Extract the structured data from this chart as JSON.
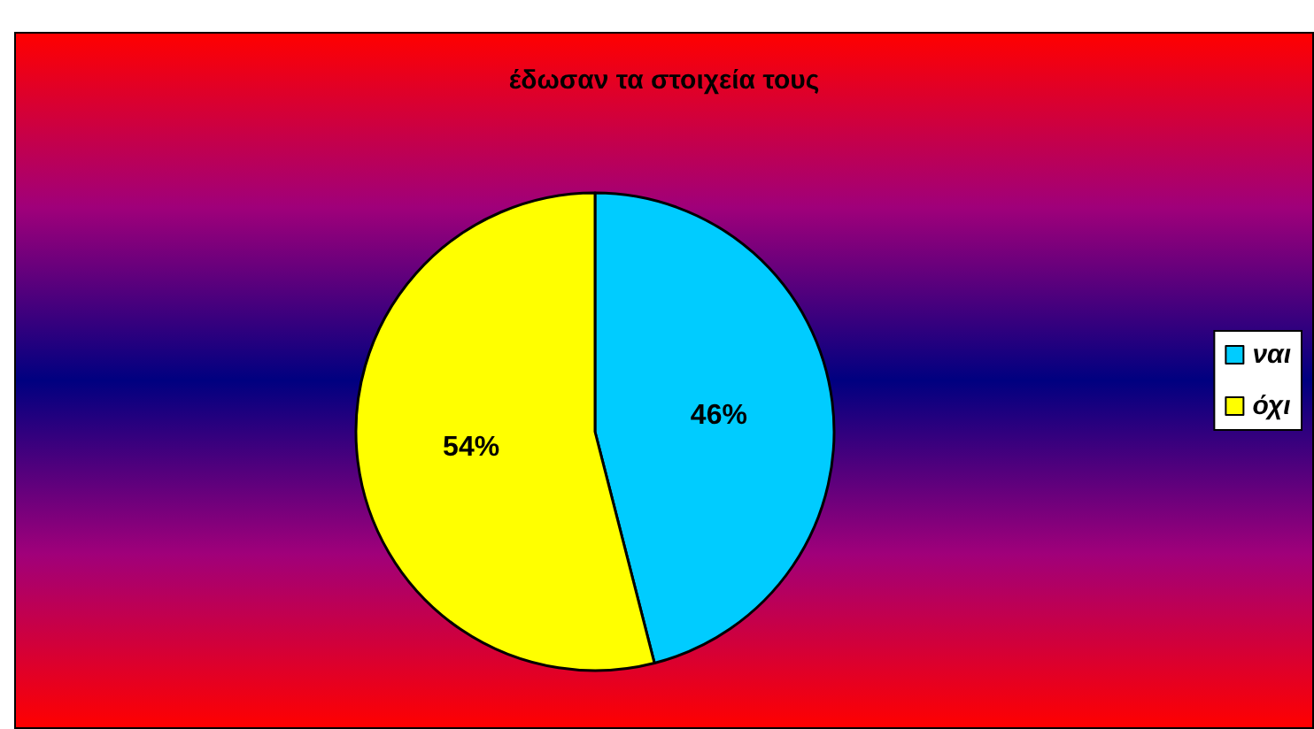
{
  "chart_data": {
    "type": "pie",
    "title": "έδωσαν τα στοιχεία τους",
    "categories": [
      "ναι",
      "όχι"
    ],
    "values": [
      46,
      54
    ],
    "colors": [
      "#00ccff",
      "#ffff00"
    ],
    "value_labels": [
      "46%",
      "54%"
    ],
    "legend": "right"
  }
}
